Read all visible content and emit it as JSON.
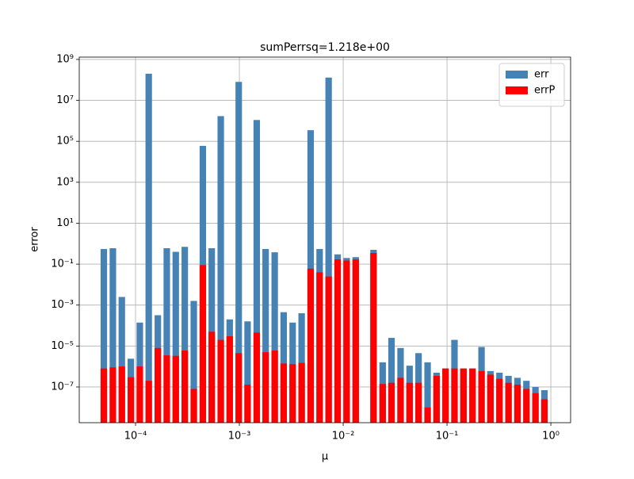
{
  "chart_data": {
    "type": "bar",
    "title": "sumPerrsq=1.218e+00",
    "x_label": "μ",
    "y_label": "error",
    "x": [
      4.95e-05,
      6.05e-05,
      7.38e-05,
      9.01e-05,
      0.00011,
      0.000134,
      0.000164,
      0.0002,
      0.000244,
      0.000298,
      0.000364,
      0.000445,
      0.000542,
      0.000662,
      0.000807,
      0.000986,
      0.0012,
      0.00147,
      0.00179,
      0.00219,
      0.00267,
      0.00326,
      0.00398,
      0.00486,
      0.00593,
      0.00724,
      0.00884,
      0.0108,
      0.0132,
      0.0161,
      0.0196,
      0.024,
      0.0292,
      0.0357,
      0.0436,
      0.0532,
      0.065,
      0.0793,
      0.0968,
      0.118,
      0.144,
      0.176,
      0.215,
      0.262,
      0.32,
      0.391,
      0.477,
      0.582,
      0.711,
      0.867
    ],
    "series": [
      {
        "name": "err",
        "color": "#4682b4",
        "values": [
          0.55,
          0.6,
          0.0025,
          2.4e-06,
          0.00014,
          200000000.0,
          0.00032,
          0.6,
          0.4,
          0.7,
          0.0016,
          60000.0,
          0.6,
          1700000.0,
          0.0002,
          80000000.0,
          0.00016,
          1100000.0,
          0.55,
          0.38,
          0.00045,
          0.00014,
          0.0004,
          350000.0,
          0.55,
          130000000.0,
          0.3,
          0.2,
          0.22,
          null,
          0.5,
          1.6e-06,
          2.5e-05,
          8e-06,
          1.1e-06,
          4.5e-06,
          1.6e-06,
          5e-07,
          8e-07,
          2e-05,
          8e-07,
          8e-07,
          9e-06,
          6e-07,
          5e-07,
          3.5e-07,
          2.8e-07,
          2e-07,
          1e-07,
          7e-08
        ]
      },
      {
        "name": "errP",
        "color": "#ff0000",
        "values": [
          8e-07,
          9e-07,
          1e-06,
          3e-07,
          1e-06,
          2e-07,
          8e-06,
          3.5e-06,
          3.3e-06,
          6e-06,
          8e-08,
          0.09,
          5e-05,
          2e-05,
          3e-05,
          4.5e-06,
          1.3e-07,
          4.5e-05,
          5e-06,
          6e-06,
          1.4e-06,
          1.3e-06,
          1.5e-06,
          0.06,
          0.04,
          0.025,
          0.17,
          0.15,
          0.17,
          null,
          0.35,
          1.4e-07,
          1.6e-07,
          2.8e-07,
          1.6e-07,
          1.6e-07,
          1e-08,
          3.5e-07,
          8e-07,
          8e-07,
          8e-07,
          8e-07,
          6e-07,
          4e-07,
          2.5e-07,
          1.6e-07,
          1.3e-07,
          8e-08,
          5e-08,
          2.5e-08
        ]
      }
    ],
    "xscale": "log",
    "yscale": "log",
    "xlim": [
      2.87e-05,
      1.55
    ],
    "ylim": [
      1.8e-09,
      1300000000.0
    ],
    "xticks": [
      {
        "value": 0.0001,
        "label": "10⁻⁴"
      },
      {
        "value": 0.001,
        "label": "10⁻³"
      },
      {
        "value": 0.01,
        "label": "10⁻²"
      },
      {
        "value": 0.1,
        "label": "10⁻¹"
      },
      {
        "value": 1,
        "label": "10⁰"
      }
    ],
    "yticks": [
      {
        "value": 1e-07,
        "label": "10⁻⁷"
      },
      {
        "value": 1e-05,
        "label": "10⁻⁵"
      },
      {
        "value": 0.001,
        "label": "10⁻³"
      },
      {
        "value": 0.1,
        "label": "10⁻¹"
      },
      {
        "value": 10,
        "label": "10¹"
      },
      {
        "value": 1000,
        "label": "10³"
      },
      {
        "value": 100000,
        "label": "10⁵"
      },
      {
        "value": 10000000,
        "label": "10⁷"
      },
      {
        "value": 1000000000,
        "label": "10⁹"
      }
    ],
    "grid": true,
    "legend": "upper right"
  }
}
